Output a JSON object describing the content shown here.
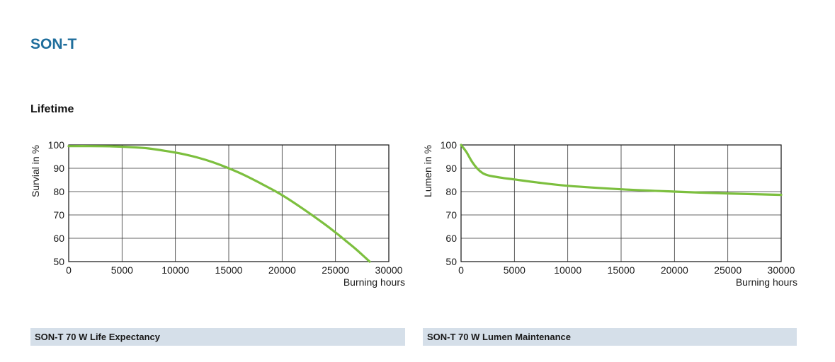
{
  "page": {
    "product_title": "SON-T",
    "section_title": "Lifetime"
  },
  "colors": {
    "title": "#1f6e9c",
    "curve": "#7cbf3e",
    "grid": "#333333",
    "caption_bg": "#d5dfe9"
  },
  "chart_data": [
    {
      "type": "line",
      "caption": "SON-T 70 W Life Expectancy",
      "xlabel": "Burning hours",
      "ylabel": "Survial in %",
      "xlim": [
        0,
        30000
      ],
      "ylim": [
        50,
        100
      ],
      "xticks": [
        0,
        5000,
        10000,
        15000,
        20000,
        25000,
        30000
      ],
      "yticks": [
        50,
        60,
        70,
        80,
        90,
        100
      ],
      "grid": true,
      "series": [
        {
          "x": [
            0,
            2000,
            4000,
            6000,
            7500,
            9000,
            10500,
            12000,
            13500,
            15000,
            16500,
            18000,
            20000,
            22000,
            24000,
            25000,
            26000,
            27000,
            28200
          ],
          "y": [
            99.5,
            99.5,
            99.4,
            99.0,
            98.5,
            97.5,
            96.3,
            94.7,
            92.6,
            90.0,
            87.0,
            83.5,
            78.5,
            72.5,
            66.0,
            62.5,
            58.8,
            55.0,
            50.0
          ]
        }
      ]
    },
    {
      "type": "line",
      "caption": "SON-T 70 W Lumen Maintenance",
      "xlabel": "Burning hours",
      "ylabel": "Lumen in %",
      "xlim": [
        0,
        30000
      ],
      "ylim": [
        50,
        100
      ],
      "xticks": [
        0,
        5000,
        10000,
        15000,
        20000,
        25000,
        30000
      ],
      "yticks": [
        50,
        60,
        70,
        80,
        90,
        100
      ],
      "grid": true,
      "series": [
        {
          "x": [
            0,
            500,
            1000,
            1500,
            2000,
            2500,
            3000,
            4000,
            5000,
            7000,
            10000,
            15000,
            20000,
            25000,
            30000
          ],
          "y": [
            100,
            97,
            93,
            90,
            88,
            87,
            86.5,
            85.8,
            85.2,
            84,
            82.5,
            81,
            80,
            79.2,
            78.6
          ]
        }
      ]
    }
  ]
}
